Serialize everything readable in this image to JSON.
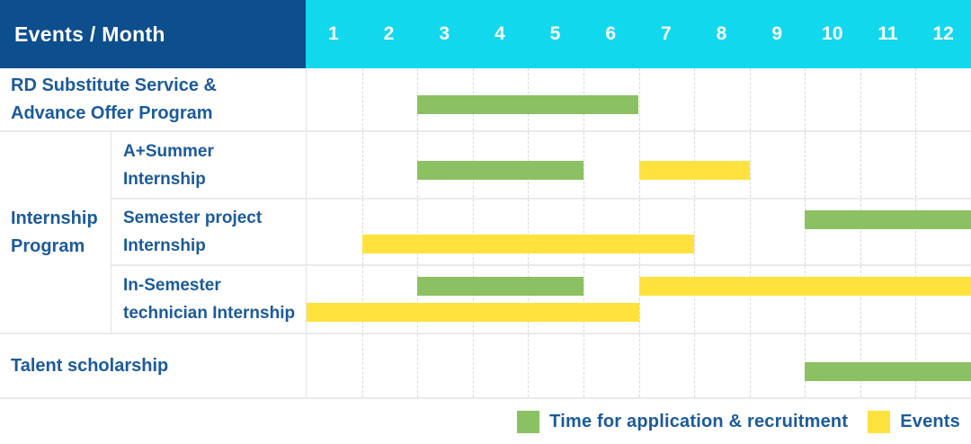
{
  "title": "Events / Month",
  "months": [
    "1",
    "2",
    "3",
    "4",
    "5",
    "6",
    "7",
    "8",
    "9",
    "10",
    "11",
    "12"
  ],
  "group_label_lines": [
    "Internship",
    "Program"
  ],
  "rows": [
    {
      "label_lines": [
        "RD Substitute Service &",
        "Advance Offer Program"
      ],
      "bars": [
        {
          "type": "application",
          "start": 3,
          "end": 6,
          "lane": "center"
        }
      ]
    },
    {
      "label_lines": [
        "A+Summer",
        "Internship"
      ],
      "bars": [
        {
          "type": "application",
          "start": 3,
          "end": 5,
          "lane": "center"
        },
        {
          "type": "event",
          "start": 7,
          "end": 8,
          "lane": "center"
        }
      ]
    },
    {
      "label_lines": [
        "Semester project",
        "Internship"
      ],
      "bars": [
        {
          "type": "application",
          "start": 10,
          "end": 12,
          "lane": "top"
        },
        {
          "type": "event",
          "start": 2,
          "end": 7,
          "lane": "bottom"
        }
      ]
    },
    {
      "label_lines": [
        "In-Semester",
        "technician Internship"
      ],
      "bars": [
        {
          "type": "application",
          "start": 3,
          "end": 5,
          "lane": "top"
        },
        {
          "type": "event",
          "start": 7,
          "end": 12,
          "lane": "top"
        },
        {
          "type": "event",
          "start": 1,
          "end": 6,
          "lane": "bottom"
        }
      ]
    },
    {
      "label_lines": [
        "Talent scholarship"
      ],
      "bars": [
        {
          "type": "application",
          "start": 10,
          "end": 12,
          "lane": "center"
        }
      ]
    }
  ],
  "legend": [
    {
      "type": "application",
      "label": "Time for application & recruitment"
    },
    {
      "type": "event",
      "label": "Events"
    }
  ],
  "colors": {
    "header_blue": "#0d4e8d",
    "month_cyan": "#12d8ee",
    "application_green": "#8cc163",
    "event_yellow": "#ffe23e",
    "text_blue": "#1b5a9b",
    "grid_solid": "#eaeaea",
    "grid_dashed": "#d8d8d8",
    "grid_vertical": "#e3e3e3"
  },
  "chart_data": {
    "type": "bar",
    "subtype": "gantt",
    "title": "Events / Month",
    "xlabel": "Month",
    "x_ticks": [
      "1",
      "2",
      "3",
      "4",
      "5",
      "6",
      "7",
      "8",
      "9",
      "10",
      "11",
      "12"
    ],
    "x_range": [
      1,
      12
    ],
    "legend_position": "bottom-right",
    "series_legend": [
      "Time for application & recruitment",
      "Events"
    ],
    "tasks": [
      {
        "name": "RD Substitute Service & Advance Offer Program",
        "group": null,
        "spans": [
          {
            "series": "Time for application & recruitment",
            "months": [
              3,
              6
            ]
          }
        ]
      },
      {
        "name": "A+Summer Internship",
        "group": "Internship Program",
        "spans": [
          {
            "series": "Time for application & recruitment",
            "months": [
              3,
              5
            ]
          },
          {
            "series": "Events",
            "months": [
              7,
              8
            ]
          }
        ]
      },
      {
        "name": "Semester project Internship",
        "group": "Internship Program",
        "spans": [
          {
            "series": "Time for application & recruitment",
            "months": [
              10,
              12
            ]
          },
          {
            "series": "Events",
            "months": [
              2,
              7
            ]
          }
        ]
      },
      {
        "name": "In-Semester technician Internship",
        "group": "Internship Program",
        "spans": [
          {
            "series": "Time for application & recruitment",
            "months": [
              3,
              5
            ]
          },
          {
            "series": "Events",
            "months": [
              7,
              12
            ]
          },
          {
            "series": "Events",
            "months": [
              1,
              6
            ]
          }
        ]
      },
      {
        "name": "Talent scholarship",
        "group": null,
        "spans": [
          {
            "series": "Time for application & recruitment",
            "months": [
              10,
              12
            ]
          }
        ]
      }
    ]
  }
}
